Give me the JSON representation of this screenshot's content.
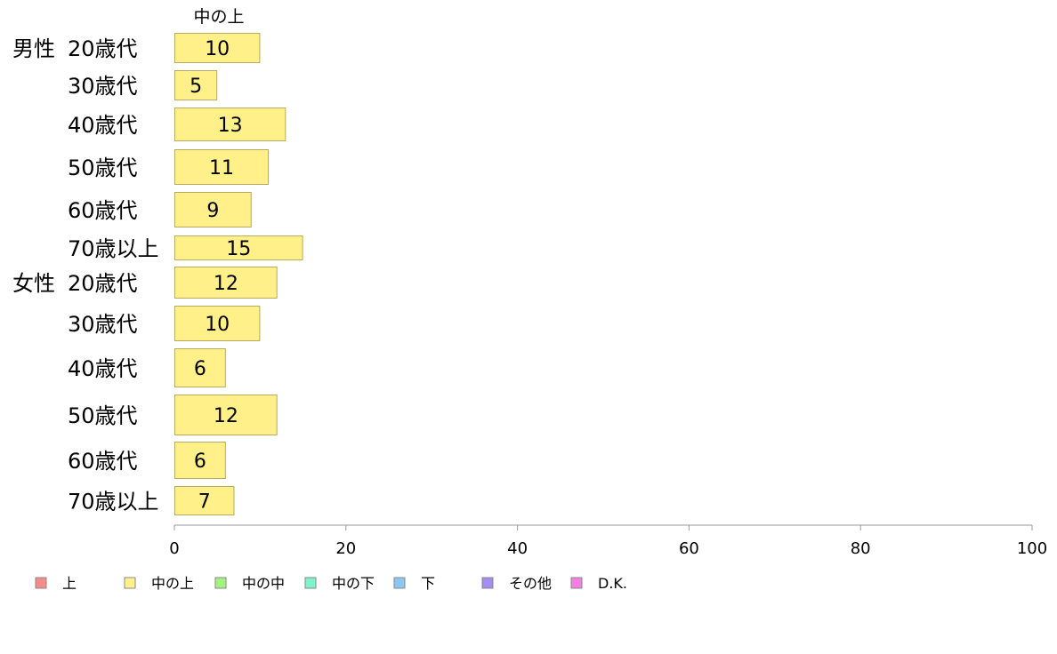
{
  "chart_data": {
    "type": "bar",
    "orientation": "horizontal",
    "stacked": true,
    "series_header": "中の上",
    "groups": [
      {
        "label": "男性",
        "categories": [
          "20歳代",
          "30歳代",
          "40歳代",
          "50歳代",
          "60歳代",
          "70歳以上"
        ]
      },
      {
        "label": "女性",
        "categories": [
          "20歳代",
          "30歳代",
          "40歳代",
          "50歳代",
          "60歳代",
          "70歳以上"
        ]
      }
    ],
    "series": [
      {
        "name": "中の上",
        "color": "#fff08a",
        "values": [
          10,
          5,
          13,
          11,
          9,
          15,
          12,
          10,
          6,
          12,
          6,
          7
        ]
      }
    ],
    "xlim": [
      0,
      100
    ],
    "xticks": [
      0,
      20,
      40,
      60,
      80,
      100
    ],
    "legend": {
      "placement": "bottom",
      "entries": [
        {
          "name": "上",
          "color": "#f58c8c"
        },
        {
          "name": "中の上",
          "color": "#fff08a"
        },
        {
          "name": "中の中",
          "color": "#a6f07e"
        },
        {
          "name": "中の下",
          "color": "#7ef2c8"
        },
        {
          "name": "下",
          "color": "#8cc6f2"
        },
        {
          "name": "その他",
          "color": "#a58cf2"
        },
        {
          "name": "D.K.",
          "color": "#f27ee0"
        }
      ]
    },
    "grid": false
  }
}
